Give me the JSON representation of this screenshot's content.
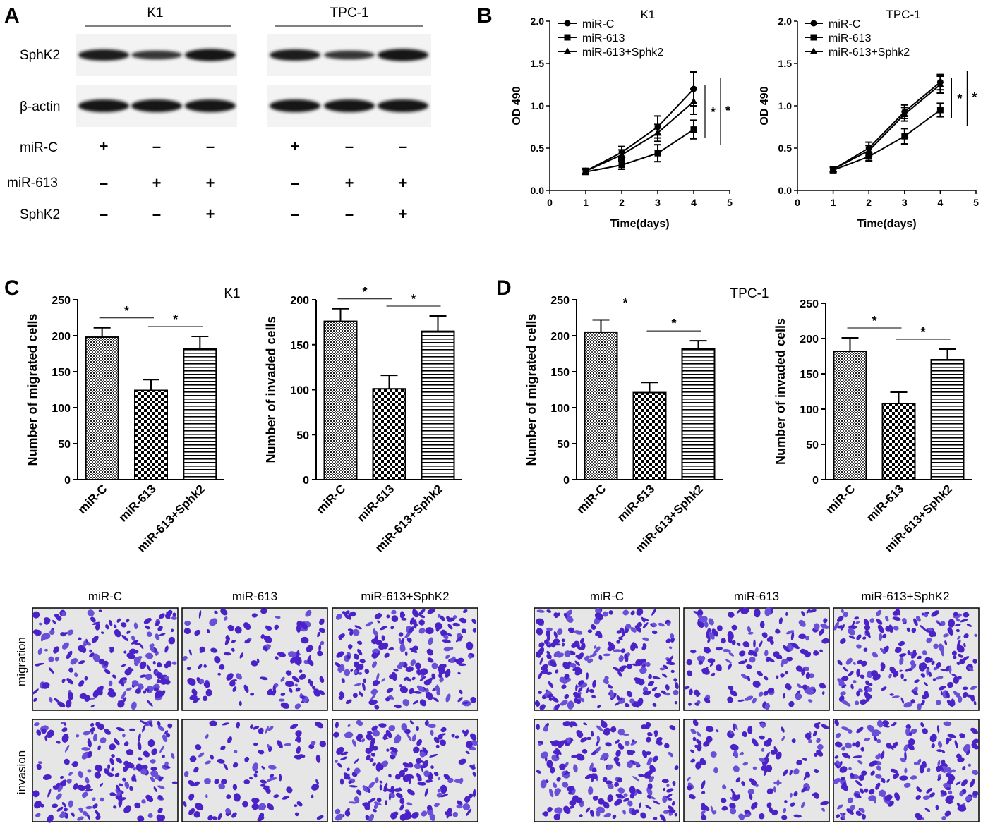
{
  "panel_letters": {
    "a": "A",
    "b": "B",
    "c": "C",
    "d": "D"
  },
  "western_blot": {
    "groups": [
      {
        "name": "K1",
        "lanes": [
          {
            "miR-C": "+",
            "miR-613": "–",
            "SphK2": "–"
          },
          {
            "miR-C": "–",
            "miR-613": "+",
            "SphK2": "–"
          },
          {
            "miR-C": "–",
            "miR-613": "+",
            "SphK2": "+"
          }
        ]
      },
      {
        "name": "TPC-1",
        "lanes": [
          {
            "miR-C": "+",
            "miR-613": "–",
            "SphK2": "–"
          },
          {
            "miR-C": "–",
            "miR-613": "+",
            "SphK2": "–"
          },
          {
            "miR-C": "–",
            "miR-613": "+",
            "SphK2": "+"
          }
        ]
      }
    ],
    "band_labels": [
      "SphK2",
      "β-actin"
    ],
    "row_labels": [
      "miR-C",
      "miR-613",
      "SphK2"
    ],
    "band_intensity_relative": {
      "K1": {
        "SphK2": [
          0.85,
          0.55,
          0.95
        ],
        "β-actin": [
          1,
          1,
          1
        ]
      },
      "TPC-1": {
        "SphK2": [
          0.85,
          0.55,
          0.95
        ],
        "β-actin": [
          1,
          1,
          1
        ]
      }
    }
  },
  "chart_data": [
    {
      "id": "B-K1",
      "type": "line",
      "title": "K1",
      "xlabel": "Time(days)",
      "ylabel": "OD 490",
      "xlim": [
        0,
        5
      ],
      "ylim": [
        0,
        2.0
      ],
      "x_ticks": [
        0,
        1,
        2,
        3,
        4,
        5
      ],
      "y_ticks": [
        0.0,
        0.5,
        1.0,
        1.5,
        2.0
      ],
      "y_tick_labels": [
        "0.0",
        "0.5",
        "1.0",
        "1.5",
        "2.0"
      ],
      "x": [
        1,
        2,
        3,
        4
      ],
      "series": [
        {
          "name": "miR-C",
          "marker": "circle",
          "values": [
            0.23,
            0.45,
            0.75,
            1.2
          ],
          "errors": [
            0.03,
            0.07,
            0.13,
            0.2
          ]
        },
        {
          "name": "miR-613",
          "marker": "square",
          "values": [
            0.22,
            0.3,
            0.44,
            0.72
          ],
          "errors": [
            0.03,
            0.05,
            0.1,
            0.11
          ]
        },
        {
          "name": "miR-613+Sphk2",
          "marker": "triangle",
          "values": [
            0.23,
            0.42,
            0.68,
            1.05
          ],
          "errors": [
            0.03,
            0.06,
            0.1,
            0.15
          ]
        }
      ],
      "significance": [
        "*",
        "*"
      ]
    },
    {
      "id": "B-TPC1",
      "type": "line",
      "title": "TPC-1",
      "xlabel": "Time(days)",
      "ylabel": "OD 490",
      "xlim": [
        0,
        5
      ],
      "ylim": [
        0,
        2.0
      ],
      "x_ticks": [
        0,
        1,
        2,
        3,
        4,
        5
      ],
      "y_ticks": [
        0.0,
        0.5,
        1.0,
        1.5,
        2.0
      ],
      "y_tick_labels": [
        "0.0",
        "0.5",
        "1.0",
        "1.5",
        "2.0"
      ],
      "x": [
        1,
        2,
        3,
        4
      ],
      "series": [
        {
          "name": "miR-C",
          "marker": "circle",
          "values": [
            0.25,
            0.5,
            0.93,
            1.28
          ],
          "errors": [
            0.03,
            0.07,
            0.08,
            0.09
          ]
        },
        {
          "name": "miR-613",
          "marker": "square",
          "values": [
            0.24,
            0.4,
            0.64,
            0.95
          ],
          "errors": [
            0.03,
            0.05,
            0.09,
            0.08
          ]
        },
        {
          "name": "miR-613+Sphk2",
          "marker": "triangle",
          "values": [
            0.25,
            0.47,
            0.9,
            1.25
          ],
          "errors": [
            0.03,
            0.06,
            0.08,
            0.1
          ]
        }
      ],
      "significance": [
        "*",
        "*"
      ]
    },
    {
      "id": "C-migrated",
      "type": "bar",
      "title": "K1",
      "xlabel": "",
      "ylabel": "Number of migrated cells",
      "ylim": [
        0,
        250
      ],
      "y_ticks": [
        0,
        50,
        100,
        150,
        200,
        250
      ],
      "categories": [
        "miR-C",
        "miR-613",
        "miR-613+Sphk2"
      ],
      "values": [
        198,
        124,
        182
      ],
      "errors": [
        13,
        15,
        17
      ],
      "significance": [
        "*",
        "*"
      ]
    },
    {
      "id": "C-invaded",
      "type": "bar",
      "title": "",
      "xlabel": "",
      "ylabel": "Number of invaded cells",
      "ylim": [
        0,
        200
      ],
      "y_ticks": [
        0,
        50,
        100,
        150,
        200
      ],
      "categories": [
        "miR-C",
        "miR-613",
        "miR-613+Sphk2"
      ],
      "values": [
        176,
        101,
        165
      ],
      "errors": [
        14,
        15,
        17
      ],
      "significance": [
        "*",
        "*"
      ]
    },
    {
      "id": "D-migrated",
      "type": "bar",
      "title": "TPC-1",
      "xlabel": "",
      "ylabel": "Number of migrated cells",
      "ylim": [
        0,
        250
      ],
      "y_ticks": [
        0,
        50,
        100,
        150,
        200,
        250
      ],
      "categories": [
        "miR-C",
        "miR-613",
        "miR-613+Sphk2"
      ],
      "values": [
        205,
        121,
        182
      ],
      "errors": [
        17,
        14,
        11
      ],
      "significance": [
        "*",
        "*"
      ]
    },
    {
      "id": "D-invaded",
      "type": "bar",
      "title": "",
      "xlabel": "",
      "ylabel": "Number of invaded cells",
      "ylim": [
        0,
        250
      ],
      "y_ticks": [
        0,
        50,
        100,
        150,
        200,
        250
      ],
      "categories": [
        "miR-C",
        "miR-613",
        "miR-613+Sphk2"
      ],
      "values": [
        182,
        108,
        170
      ],
      "errors": [
        19,
        16,
        15
      ],
      "significance": [
        "*",
        "*"
      ]
    }
  ],
  "micrographs": {
    "column_labels": [
      "miR-C",
      "miR-613",
      "miR-613+SphK2"
    ],
    "row_labels": [
      "migration",
      "invasion"
    ],
    "stain_color": "#4a22c8",
    "background_color": "#e6e6e6",
    "cell_density": {
      "K1": {
        "migration": [
          0.75,
          0.45,
          0.85
        ],
        "invasion": [
          0.7,
          0.3,
          0.8
        ]
      },
      "TPC-1": {
        "migration": [
          1.0,
          0.6,
          0.9
        ],
        "invasion": [
          0.85,
          0.5,
          0.75
        ]
      }
    }
  }
}
